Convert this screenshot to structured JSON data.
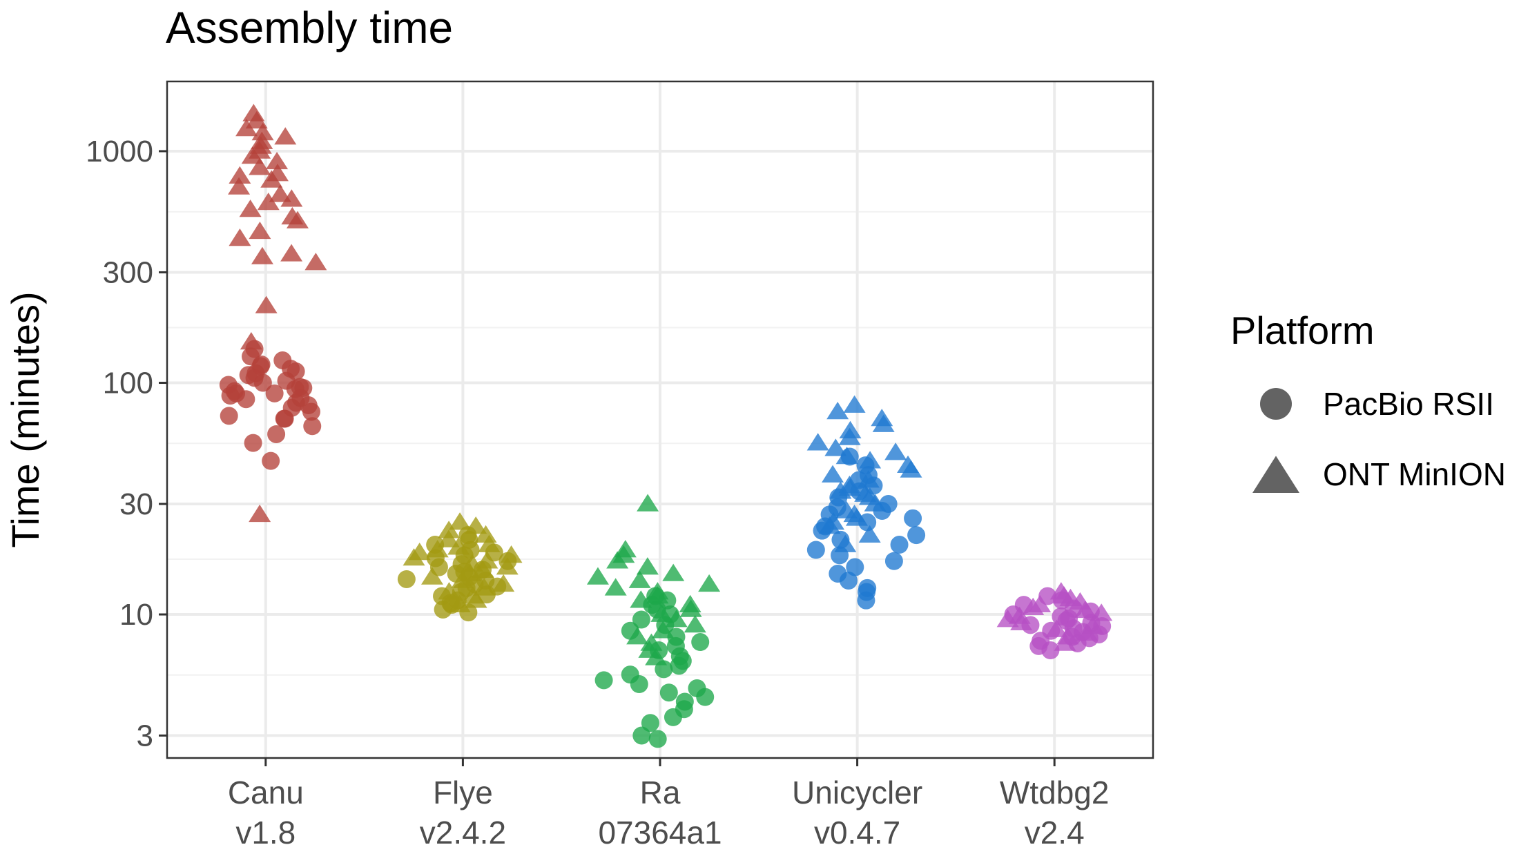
{
  "chart_data": {
    "type": "scatter",
    "title": "Assembly time",
    "ylabel": "Time (minutes)",
    "xlabel": "",
    "y_scale": "log",
    "ylim": [
      2.4,
      2000
    ],
    "grid": true,
    "legend_position": "right",
    "categories": [
      {
        "name": "Canu",
        "version": "v1.8",
        "color": "#b5413a"
      },
      {
        "name": "Flye",
        "version": "v2.4.2",
        "color": "#a39a12"
      },
      {
        "name": "Ra",
        "version": "07364a1",
        "color": "#1ea84a"
      },
      {
        "name": "Unicycler",
        "version": "v0.4.7",
        "color": "#1f78d1"
      },
      {
        "name": "Wtdbg2",
        "version": "v2.4",
        "color": "#b64fc4"
      }
    ],
    "y_ticks": [
      {
        "value": 3,
        "label": "3"
      },
      {
        "value": 10,
        "label": "10"
      },
      {
        "value": 30,
        "label": "30"
      },
      {
        "value": 100,
        "label": "100"
      },
      {
        "value": 300,
        "label": "300"
      },
      {
        "value": 1000,
        "label": "1000"
      }
    ],
    "legend": {
      "title": "Platform",
      "entries": [
        {
          "label": "PacBio RSII",
          "shape": "circle"
        },
        {
          "label": "ONT MinION",
          "shape": "triangle"
        }
      ]
    },
    "series": [
      {
        "category": "Canu",
        "platform": "PacBio RSII",
        "values": [
          46,
          55,
          60,
          65,
          70,
          70,
          72,
          75,
          78,
          80,
          82,
          85,
          86,
          88,
          90,
          90,
          92,
          94,
          95,
          96,
          98,
          100,
          102,
          105,
          108,
          110,
          112,
          115,
          118,
          120,
          125,
          130,
          140
        ]
      },
      {
        "category": "Canu",
        "platform": "ONT MinION",
        "values": [
          27,
          150,
          215,
          330,
          350,
          360,
          420,
          450,
          500,
          520,
          560,
          600,
          620,
          650,
          700,
          750,
          780,
          800,
          850,
          900,
          950,
          1000,
          1050,
          1100,
          1150,
          1200,
          1250,
          1350,
          1450
        ]
      },
      {
        "category": "Flye",
        "platform": "PacBio RSII",
        "values": [
          10.2,
          10.5,
          11,
          11.2,
          11.5,
          12,
          12.2,
          12.5,
          13,
          13.2,
          13.5,
          14,
          14.2,
          14.5,
          15,
          15.3,
          15.6,
          16,
          16.5,
          17,
          17.5,
          18,
          18.5,
          19,
          20,
          21,
          22
        ]
      },
      {
        "category": "Flye",
        "platform": "ONT MinION",
        "values": [
          11,
          11.5,
          12,
          12.5,
          13,
          13.5,
          14,
          14.5,
          15,
          15.5,
          16,
          16.5,
          17,
          17.5,
          18,
          18.5,
          19,
          19.5,
          20,
          21,
          22,
          23,
          24,
          25
        ]
      },
      {
        "category": "Ra",
        "platform": "PacBio RSII",
        "values": [
          2.9,
          3.0,
          3.4,
          3.6,
          3.9,
          4.2,
          4.4,
          4.6,
          4.8,
          5.0,
          5.2,
          5.5,
          5.8,
          6.0,
          6.3,
          6.6,
          7.0,
          7.3,
          7.6,
          8.0,
          8.5,
          9.0,
          9.5,
          10,
          10.5,
          11,
          11.5,
          12
        ]
      },
      {
        "category": "Ra",
        "platform": "ONT MinION",
        "values": [
          6.5,
          7,
          7.5,
          8,
          8.5,
          9,
          9.5,
          10,
          10.5,
          11,
          11.5,
          12,
          12.5,
          13,
          13.5,
          14,
          14.5,
          15,
          16,
          17,
          18,
          19,
          30
        ]
      },
      {
        "category": "Unicycler",
        "platform": "PacBio RSII",
        "values": [
          11.5,
          12.5,
          13,
          14,
          15,
          16,
          17,
          18,
          19,
          20,
          21,
          22,
          23,
          24,
          25,
          26,
          27,
          28,
          29,
          30,
          32,
          34,
          36,
          38,
          40,
          44,
          48
        ]
      },
      {
        "category": "Unicycler",
        "platform": "ONT MinION",
        "values": [
          20,
          22,
          24,
          25,
          26,
          27,
          28,
          30,
          32,
          33,
          34,
          35,
          36,
          38,
          40,
          42,
          44,
          46,
          48,
          50,
          52,
          55,
          58,
          62,
          66,
          70,
          75,
          80
        ]
      },
      {
        "category": "Wtdbg2",
        "platform": "PacBio RSII",
        "values": [
          7.0,
          7.3,
          7.5,
          7.7,
          7.9,
          8.0,
          8.2,
          8.4,
          8.5,
          8.7,
          8.9,
          9.0,
          9.2,
          9.4,
          9.6,
          9.8,
          10,
          10.3,
          10.6,
          11,
          11.5,
          12
        ]
      },
      {
        "category": "Wtdbg2",
        "platform": "ONT MinION",
        "values": [
          7.5,
          8.0,
          8.3,
          8.6,
          8.9,
          9.2,
          9.5,
          9.8,
          10.1,
          10.4,
          10.7,
          11,
          11.3,
          11.7,
          12,
          12.5
        ]
      }
    ]
  }
}
